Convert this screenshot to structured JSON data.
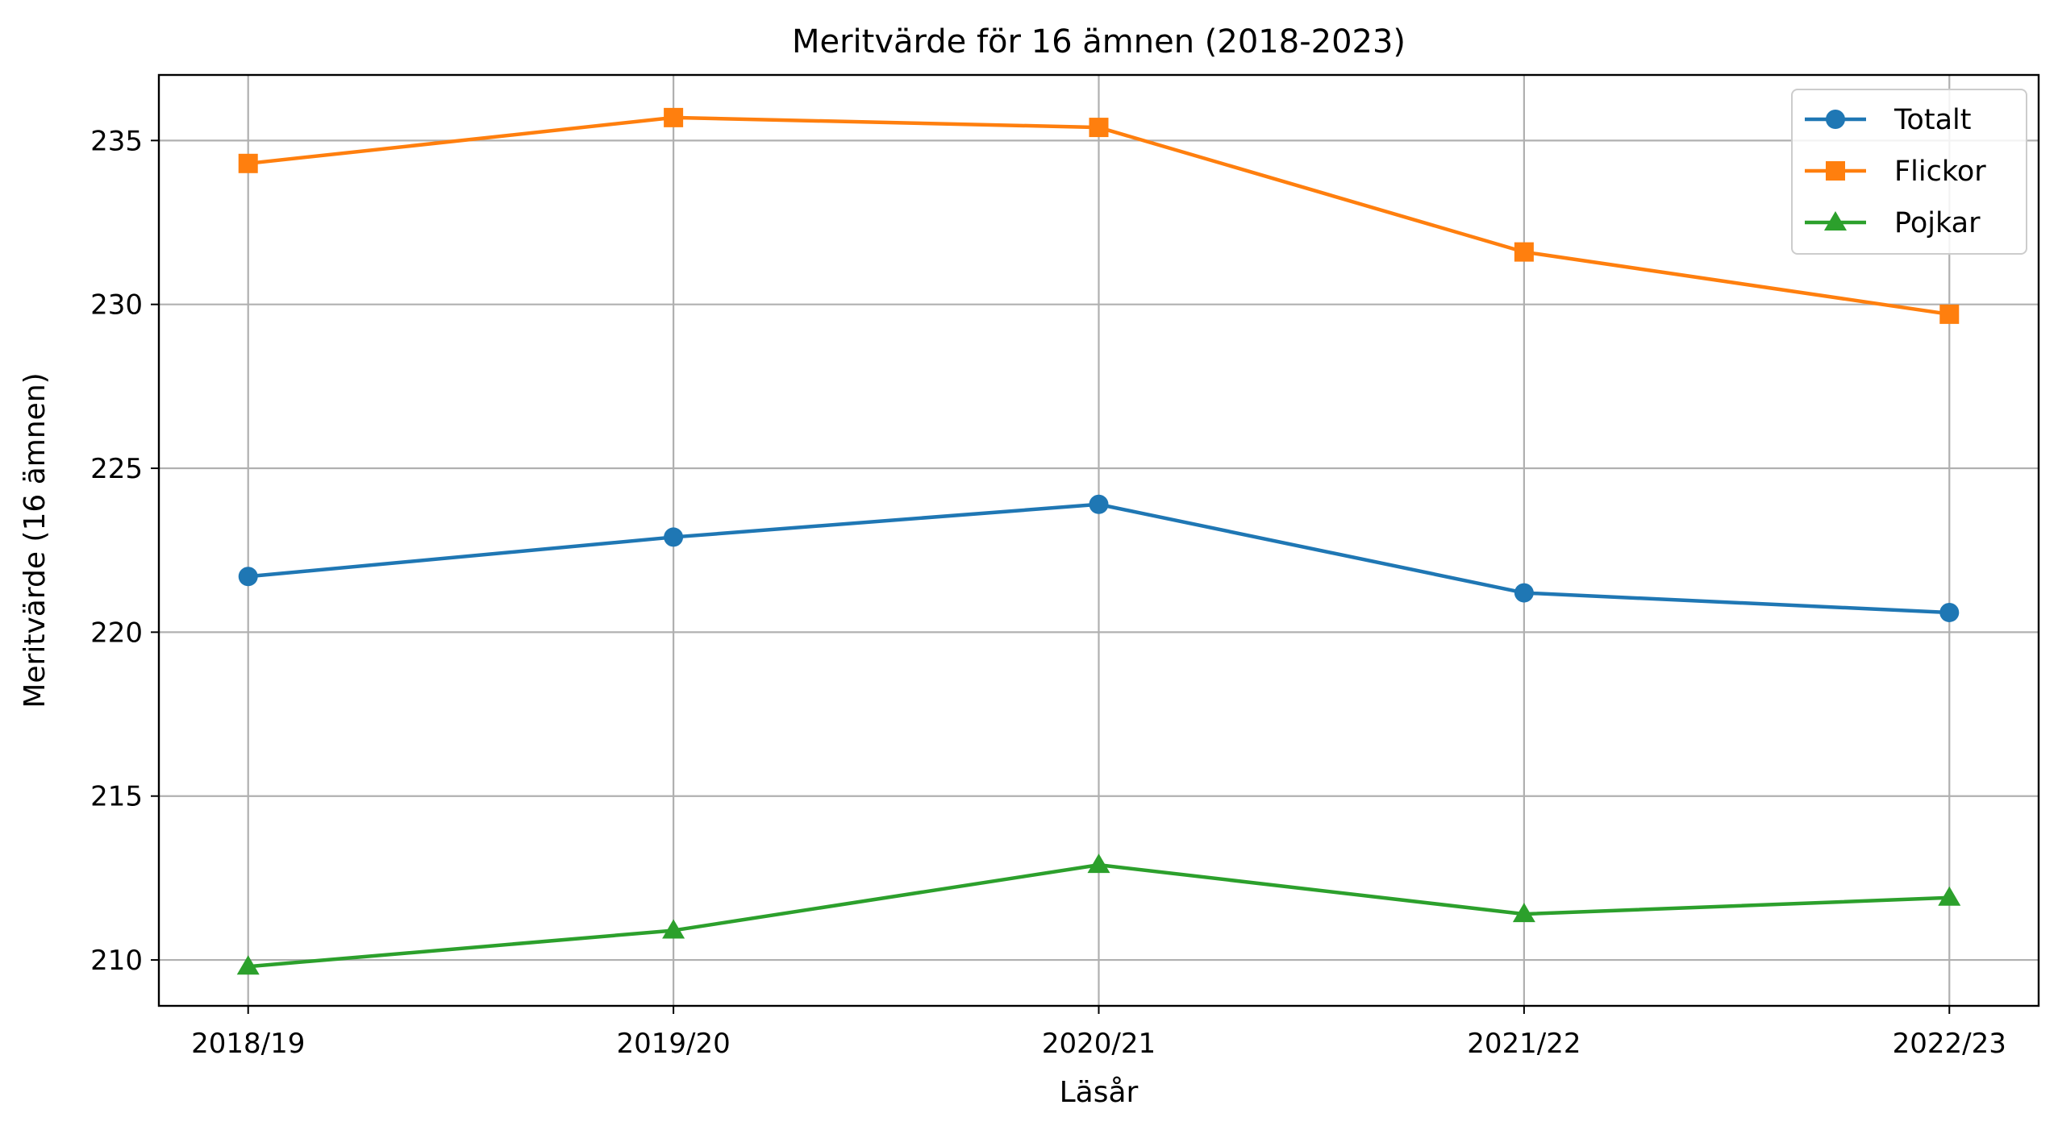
{
  "chart_data": {
    "type": "line",
    "title": "Meritvärde för 16 ämnen (2018-2023)",
    "xlabel": "Läsår",
    "ylabel": "Meritvärde (16 ämnen)",
    "categories": [
      "2018/19",
      "2019/20",
      "2020/21",
      "2021/22",
      "2022/23"
    ],
    "ylim": [
      208.6,
      237.0
    ],
    "yticks": [
      210,
      215,
      220,
      225,
      230,
      235
    ],
    "grid": true,
    "legend_position": "top-right",
    "series": [
      {
        "name": "Totalt",
        "color": "#1f77b4",
        "marker": "circle",
        "values": [
          221.7,
          222.9,
          223.9,
          221.2,
          220.6
        ]
      },
      {
        "name": "Flickor",
        "color": "#ff7f0e",
        "marker": "square",
        "values": [
          234.3,
          235.7,
          235.4,
          231.6,
          229.7
        ]
      },
      {
        "name": "Pojkar",
        "color": "#2ca02c",
        "marker": "triangle",
        "values": [
          209.8,
          210.9,
          212.9,
          211.4,
          211.9
        ]
      }
    ]
  }
}
